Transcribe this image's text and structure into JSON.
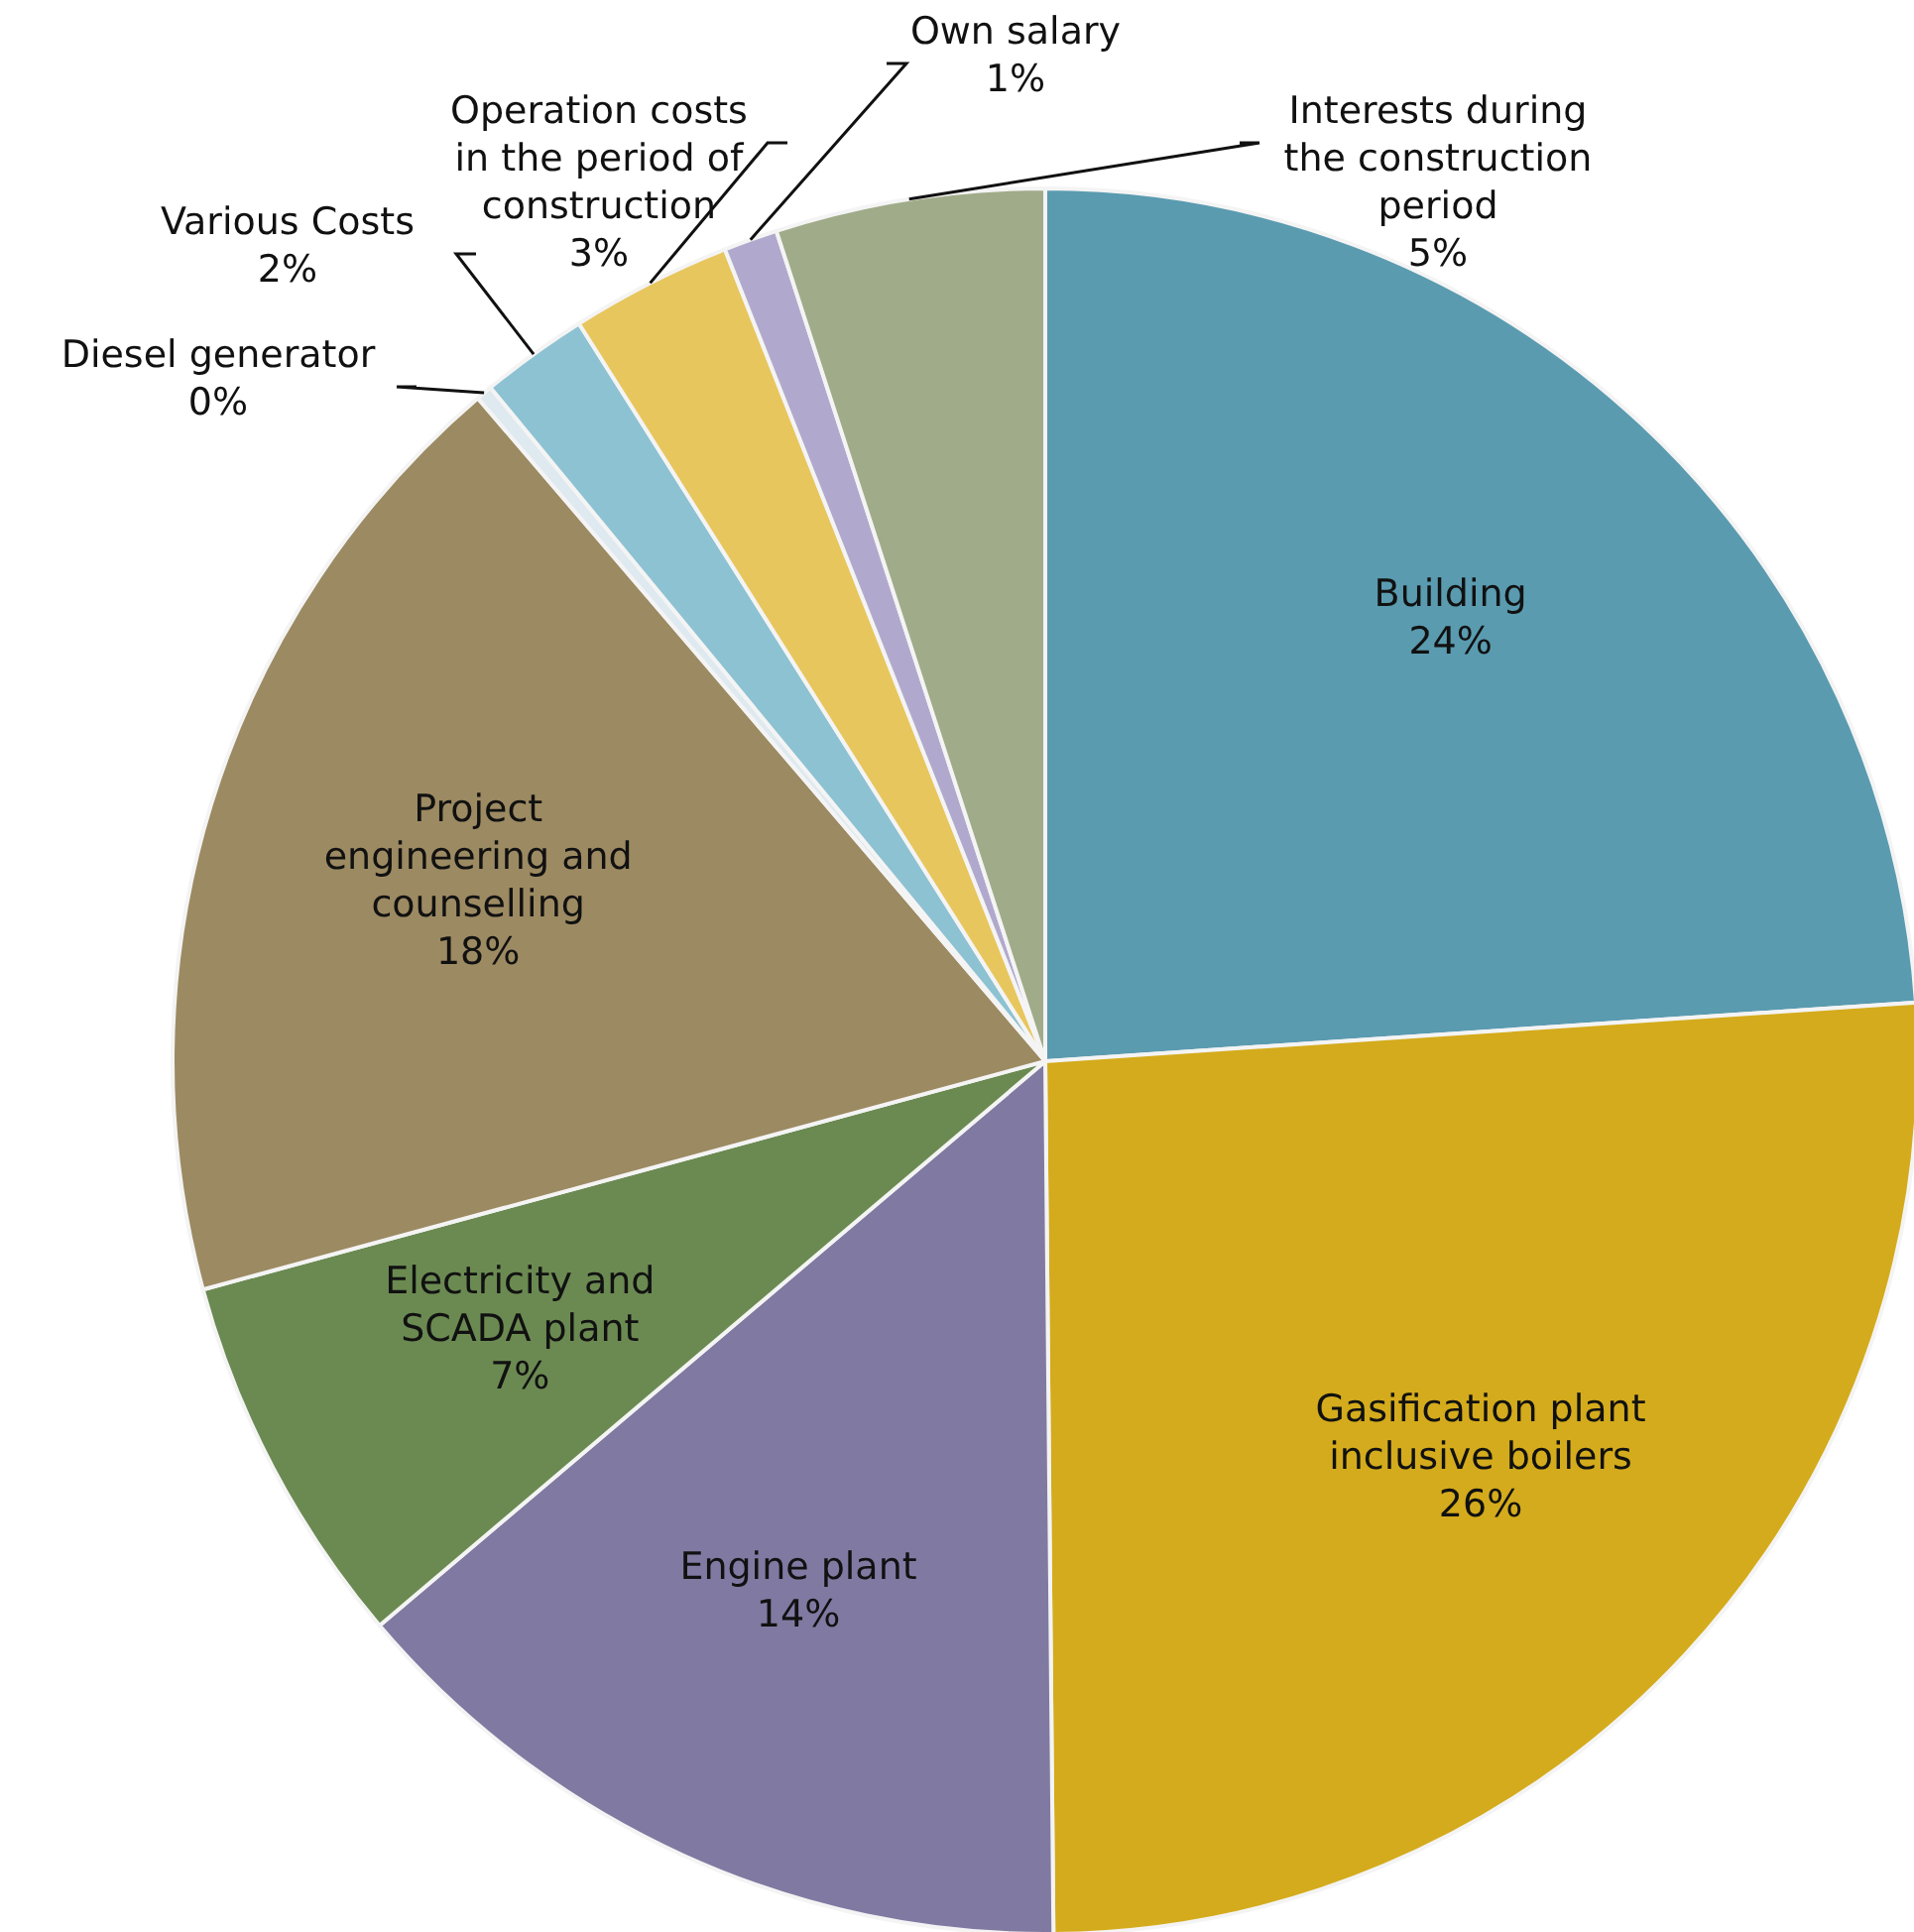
{
  "chart_data": {
    "type": "pie",
    "categories": [
      "Building",
      "Gasification plant inclusive boilers",
      "Engine plant",
      "Electricity and SCADA plant",
      "Project engineering and counselling",
      "Diesel generator",
      "Various Costs",
      "Operation costs in the period of construction",
      "Own salary",
      "Interests during the construction period"
    ],
    "values": [
      24,
      26,
      14,
      7,
      18,
      0.3,
      2,
      3,
      1,
      5
    ],
    "value_labels": [
      "24%",
      "26%",
      "14%",
      "7%",
      "18%",
      "0%",
      "2%",
      "3%",
      "1%",
      "5%"
    ],
    "colors": [
      "#5a9bb0",
      "#d4ab1c",
      "#807aa2",
      "#6b8a52",
      "#9c8a62",
      "#dfe9f0",
      "#8dc2d2",
      "#e8c65e",
      "#b1a9cd",
      "#a0ab89"
    ]
  }
}
